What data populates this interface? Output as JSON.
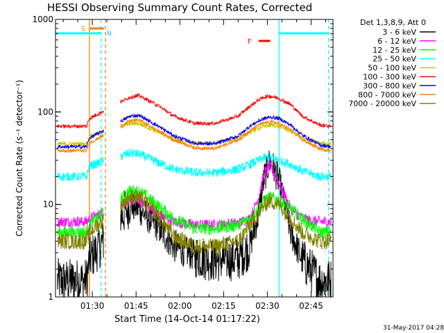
{
  "chart_data": {
    "type": "line",
    "title": "HESSI Observing Summary Count Rates, Corrected",
    "ylabel": "Corrected Count Rate (s⁻¹ detector⁻¹)",
    "xlabel": "Start Time (14-Oct-14 01:17:22)",
    "y_scale": "log",
    "ylim": [
      1,
      1000
    ],
    "xlim": [
      "01:17:22",
      "02:52:30"
    ],
    "xticks": [
      "01:30",
      "01:45",
      "02:00",
      "02:15",
      "02:30",
      "02:45"
    ],
    "yticks": [
      "1",
      "10",
      "100",
      "1000"
    ],
    "legend_title": "Det 1,3,8,9, Att 0",
    "legend_position": "right",
    "series": [
      {
        "name": "3 - 6 keV",
        "color": "#000000",
        "x": [
          "01:18",
          "01:28",
          "01:29",
          "01:43",
          "01:46",
          "01:52",
          "01:58",
          "02:05",
          "02:12",
          "02:20",
          "02:24",
          "02:27",
          "02:29",
          "02:31",
          "02:34",
          "02:38",
          "02:42",
          "02:48",
          "02:52"
        ],
        "y": [
          1.5,
          1.5,
          2.5,
          10,
          9,
          6,
          3.5,
          2.8,
          2.5,
          2.6,
          3.5,
          8,
          20,
          30,
          18,
          5,
          2.5,
          1.5,
          1.5
        ]
      },
      {
        "name": "6 - 12 keV",
        "color": "#ff00ff",
        "x": [
          "01:18",
          "01:28",
          "01:29",
          "01:43",
          "01:46",
          "01:52",
          "01:58",
          "02:05",
          "02:12",
          "02:20",
          "02:24",
          "02:27",
          "02:29",
          "02:31",
          "02:34",
          "02:38",
          "02:42",
          "02:48",
          "02:52"
        ],
        "y": [
          6.5,
          6.5,
          7,
          11,
          11,
          8,
          6.5,
          6,
          6,
          6.3,
          7,
          12,
          22,
          26,
          17,
          9,
          7,
          6.5,
          6.5
        ]
      },
      {
        "name": "12 - 25 keV",
        "color": "#00ff00",
        "x": [
          "01:18",
          "01:28",
          "01:29",
          "01:43",
          "01:46",
          "01:52",
          "01:58",
          "02:05",
          "02:12",
          "02:20",
          "02:24",
          "02:27",
          "02:29",
          "02:31",
          "02:34",
          "02:38",
          "02:42",
          "02:48",
          "02:52"
        ],
        "y": [
          5,
          5,
          6,
          14,
          14,
          10,
          7,
          5.5,
          5.5,
          6,
          7,
          9,
          11,
          12,
          11,
          9,
          7,
          5,
          5
        ]
      },
      {
        "name": "25 - 50 keV",
        "color": "#00ffff",
        "x": [
          "01:18",
          "01:28",
          "01:29",
          "01:43",
          "01:46",
          "01:52",
          "01:58",
          "02:05",
          "02:12",
          "02:20",
          "02:24",
          "02:27",
          "02:29",
          "02:31",
          "02:34",
          "02:38",
          "02:42",
          "02:48",
          "02:52"
        ],
        "y": [
          20,
          20,
          26,
          36,
          35,
          29,
          24,
          22,
          22,
          24,
          27,
          30,
          32,
          32,
          30,
          27,
          23,
          20,
          20
        ]
      },
      {
        "name": "50 - 100 keV",
        "color": "#c8c800",
        "x": [
          "01:18",
          "01:28",
          "01:29",
          "01:43",
          "01:46",
          "01:52",
          "01:58",
          "02:05",
          "02:12",
          "02:20",
          "02:24",
          "02:27",
          "02:29",
          "02:31",
          "02:34",
          "02:38",
          "02:42",
          "02:48",
          "02:52"
        ],
        "y": [
          45,
          45,
          55,
          75,
          75,
          62,
          50,
          46,
          46,
          52,
          60,
          67,
          70,
          72,
          70,
          62,
          52,
          46,
          45
        ]
      },
      {
        "name": "100 - 300 keV",
        "color": "#ff0000",
        "x": [
          "01:18",
          "01:28",
          "01:29",
          "01:43",
          "01:46",
          "01:52",
          "01:58",
          "02:05",
          "02:12",
          "02:20",
          "02:24",
          "02:27",
          "02:29",
          "02:31",
          "02:34",
          "02:38",
          "02:42",
          "02:48",
          "02:52"
        ],
        "y": [
          70,
          70,
          85,
          145,
          150,
          120,
          90,
          75,
          75,
          90,
          115,
          135,
          145,
          148,
          140,
          120,
          90,
          72,
          70
        ]
      },
      {
        "name": "300 - 800 keV",
        "color": "#0000ff",
        "x": [
          "01:18",
          "01:28",
          "01:29",
          "01:43",
          "01:46",
          "01:52",
          "01:58",
          "02:05",
          "02:12",
          "02:20",
          "02:24",
          "02:27",
          "02:29",
          "02:31",
          "02:34",
          "02:38",
          "02:42",
          "02:48",
          "02:52"
        ],
        "y": [
          42,
          42,
          52,
          90,
          92,
          72,
          55,
          46,
          45,
          55,
          70,
          80,
          85,
          88,
          85,
          72,
          56,
          44,
          42
        ]
      },
      {
        "name": "800 - 7000 keV",
        "color": "#ff8000",
        "x": [
          "01:18",
          "01:28",
          "01:29",
          "01:43",
          "01:46",
          "01:52",
          "01:58",
          "02:05",
          "02:12",
          "02:20",
          "02:24",
          "02:27",
          "02:29",
          "02:31",
          "02:34",
          "02:38",
          "02:42",
          "02:48",
          "02:52"
        ],
        "y": [
          38,
          38,
          46,
          80,
          82,
          64,
          50,
          41,
          40,
          50,
          62,
          72,
          76,
          78,
          75,
          64,
          50,
          40,
          38
        ]
      },
      {
        "name": "7000 - 20000 keV",
        "color": "#808000",
        "x": [
          "01:18",
          "01:28",
          "01:29",
          "01:43",
          "01:46",
          "01:52",
          "01:58",
          "02:05",
          "02:12",
          "02:20",
          "02:24",
          "02:27",
          "02:29",
          "02:31",
          "02:34",
          "02:38",
          "02:42",
          "02:48",
          "02:52"
        ],
        "y": [
          4,
          4,
          5,
          12,
          12,
          8,
          4.5,
          3.5,
          3.5,
          4,
          6,
          8,
          10,
          11,
          10,
          7,
          5,
          4,
          4
        ]
      }
    ],
    "annotations": [
      {
        "label": "S",
        "color": "#ff8000",
        "x_start": "01:29",
        "x_end": "01:34"
      },
      {
        "label": "N",
        "color": "#00c8ff",
        "x": "01:34"
      },
      {
        "label": "F",
        "color": "#ff0000",
        "x_start": "02:27",
        "x_end": "02:31"
      }
    ],
    "night_bars": [
      {
        "x_start": "01:17:22",
        "x_end": "01:33"
      },
      {
        "x_start": "02:34",
        "x_end": "02:51"
      }
    ],
    "vertical_markers": [
      {
        "x": "01:29",
        "style": "solid",
        "color": "#ff8000"
      },
      {
        "x": "01:33",
        "style": "dashed",
        "color": "#00ffff"
      },
      {
        "x": "01:34.5",
        "style": "dashed",
        "color": "#ff8000"
      },
      {
        "x": "02:34",
        "style": "solid",
        "color": "#00ffff"
      },
      {
        "x": "02:51",
        "style": "dashed",
        "color": "#00ffff"
      }
    ],
    "timestamp": "31-May-2017 04:28"
  }
}
